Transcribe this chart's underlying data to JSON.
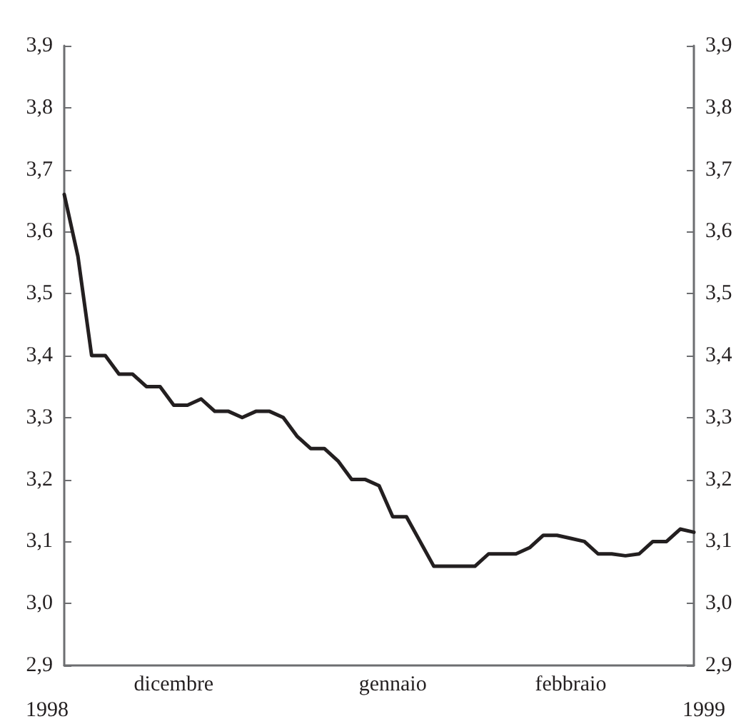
{
  "chart_data": {
    "type": "line",
    "categories": [
      null,
      null,
      null,
      null,
      null,
      null,
      null,
      null,
      "dicembre",
      null,
      null,
      null,
      null,
      null,
      null,
      null,
      null,
      null,
      null,
      null,
      null,
      null,
      null,
      null,
      "gennaio",
      null,
      null,
      null,
      null,
      null,
      null,
      null,
      null,
      null,
      null,
      null,
      null,
      "febbraio",
      null,
      null,
      null,
      null,
      null,
      null,
      null,
      null,
      null
    ],
    "series": [
      {
        "color": "#231f20",
        "values": [
          3.66,
          3.56,
          3.4,
          3.4,
          3.37,
          3.37,
          3.35,
          3.35,
          3.32,
          3.32,
          3.33,
          3.31,
          3.31,
          3.3,
          3.31,
          3.31,
          3.3,
          3.27,
          3.25,
          3.25,
          3.23,
          3.2,
          3.2,
          3.19,
          3.14,
          3.14,
          3.1,
          3.06,
          3.06,
          3.06,
          3.06,
          3.08,
          3.08,
          3.08,
          3.09,
          3.11,
          3.11,
          3.105,
          3.1,
          3.08,
          3.08,
          3.077,
          3.08,
          3.1,
          3.1,
          3.12,
          3.115
        ]
      }
    ],
    "ylim": [
      2.9,
      3.9
    ],
    "yticks": [
      {
        "value": 2.9,
        "label": "2,9"
      },
      {
        "value": 3.0,
        "label": "3,0"
      },
      {
        "value": 3.1,
        "label": "3,1"
      },
      {
        "value": 3.2,
        "label": "3,2"
      },
      {
        "value": 3.3,
        "label": "3,3"
      },
      {
        "value": 3.4,
        "label": "3,4"
      },
      {
        "value": 3.5,
        "label": "3,5"
      },
      {
        "value": 3.6,
        "label": "3,6"
      },
      {
        "value": 3.7,
        "label": "3,7"
      },
      {
        "value": 3.8,
        "label": "3,8"
      },
      {
        "value": 3.9,
        "label": "3,9"
      }
    ],
    "y2lim": [
      2.9,
      3.9
    ],
    "y2ticks": [
      {
        "value": 2.9,
        "label": "2,9"
      },
      {
        "value": 3.0,
        "label": "3,0"
      },
      {
        "value": 3.1,
        "label": "3,1"
      },
      {
        "value": 3.2,
        "label": "3,2"
      },
      {
        "value": 3.3,
        "label": "3,3"
      },
      {
        "value": 3.4,
        "label": "3,4"
      },
      {
        "value": 3.5,
        "label": "3,5"
      },
      {
        "value": 3.6,
        "label": "3,6"
      },
      {
        "value": 3.7,
        "label": "3,7"
      },
      {
        "value": 3.8,
        "label": "3,8"
      },
      {
        "value": 3.9,
        "label": "3,9"
      }
    ],
    "annotations": [
      "1998",
      "1999"
    ],
    "grid": false,
    "marker": "none",
    "line_style": "solid"
  }
}
